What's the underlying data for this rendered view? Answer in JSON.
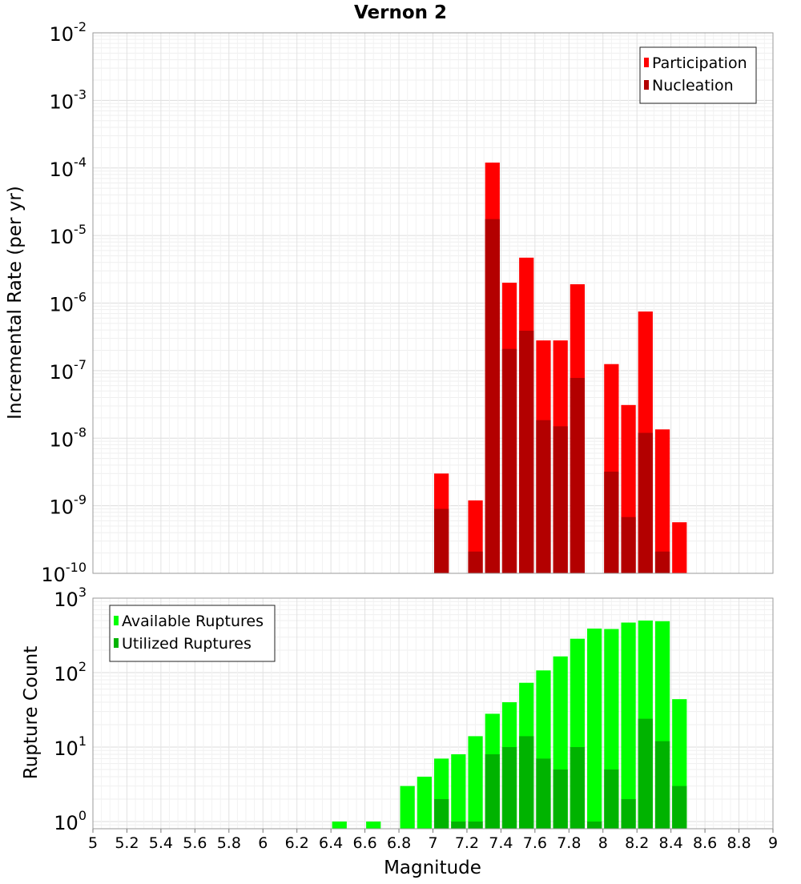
{
  "chart_data": [
    {
      "type": "bar",
      "title": "Vernon 2",
      "xlabel": "",
      "ylabel": "Incremental Rate (per yr)",
      "yscale": "log",
      "ylim": [
        1e-10,
        0.01
      ],
      "xlim": [
        5,
        9
      ],
      "grid": true,
      "legend_position": "top-right",
      "ytick_labels": [
        {
          "base": "10",
          "exp": "-10"
        },
        {
          "base": "10",
          "exp": "-9"
        },
        {
          "base": "10",
          "exp": "-8"
        },
        {
          "base": "10",
          "exp": "-7"
        },
        {
          "base": "10",
          "exp": "-6"
        },
        {
          "base": "10",
          "exp": "-5"
        },
        {
          "base": "10",
          "exp": "-4"
        },
        {
          "base": "10",
          "exp": "-3"
        },
        {
          "base": "10",
          "exp": "-2"
        }
      ],
      "series": [
        {
          "name": "Participation",
          "color": "#ff0000",
          "x": [
            7.0,
            7.2,
            7.3,
            7.4,
            7.5,
            7.6,
            7.7,
            7.8,
            8.0,
            8.1,
            8.2,
            8.3,
            8.4
          ],
          "values": [
            3e-09,
            1.2e-09,
            0.00012,
            2e-06,
            4.7e-06,
            2.8e-07,
            2.8e-07,
            1.9e-06,
            1.25e-07,
            3.1e-08,
            7.5e-07,
            1.35e-08,
            5.7e-10
          ]
        },
        {
          "name": "Nucleation",
          "color": "#b30000",
          "x": [
            7.0,
            7.2,
            7.3,
            7.4,
            7.5,
            7.6,
            7.7,
            7.8,
            8.0,
            8.1,
            8.2,
            8.3
          ],
          "values": [
            9e-10,
            2.1e-10,
            1.75e-05,
            2.1e-07,
            3.9e-07,
            1.85e-08,
            1.5e-08,
            7.8e-08,
            3.2e-09,
            6.8e-10,
            1.2e-08,
            2.1e-10
          ]
        }
      ]
    },
    {
      "type": "bar",
      "title": "",
      "xlabel": "Magnitude",
      "ylabel": "Rupture Count",
      "yscale": "log",
      "ylim": [
        0.8,
        1000
      ],
      "xlim": [
        5,
        9
      ],
      "grid": true,
      "legend_position": "top-left",
      "xtick_labels": [
        "5",
        "5.2",
        "5.4",
        "5.6",
        "5.8",
        "6",
        "6.2",
        "6.4",
        "6.6",
        "6.8",
        "7",
        "7.2",
        "7.4",
        "7.6",
        "7.8",
        "8",
        "8.2",
        "8.4",
        "8.6",
        "8.8",
        "9"
      ],
      "ytick_labels": [
        {
          "base": "10",
          "exp": "0"
        },
        {
          "base": "10",
          "exp": "1"
        },
        {
          "base": "10",
          "exp": "2"
        },
        {
          "base": "10",
          "exp": "3"
        }
      ],
      "series": [
        {
          "name": "Available Ruptures",
          "color": "#00ff00",
          "x": [
            6.4,
            6.6,
            6.8,
            6.9,
            7.0,
            7.1,
            7.2,
            7.3,
            7.4,
            7.5,
            7.6,
            7.7,
            7.8,
            7.9,
            8.0,
            8.1,
            8.2,
            8.3,
            8.4
          ],
          "values": [
            1,
            1,
            3,
            4,
            7,
            8,
            14,
            28,
            40,
            73,
            107,
            165,
            285,
            390,
            385,
            470,
            500,
            490,
            44
          ]
        },
        {
          "name": "Utilized Ruptures",
          "color": "#00b300",
          "x": [
            7.0,
            7.1,
            7.2,
            7.3,
            7.4,
            7.5,
            7.6,
            7.7,
            7.8,
            7.9,
            8.0,
            8.1,
            8.2,
            8.3,
            8.4
          ],
          "values": [
            2,
            1,
            1,
            8,
            10,
            14,
            7,
            5,
            10,
            1,
            5,
            2,
            24,
            12,
            3
          ]
        }
      ]
    }
  ]
}
